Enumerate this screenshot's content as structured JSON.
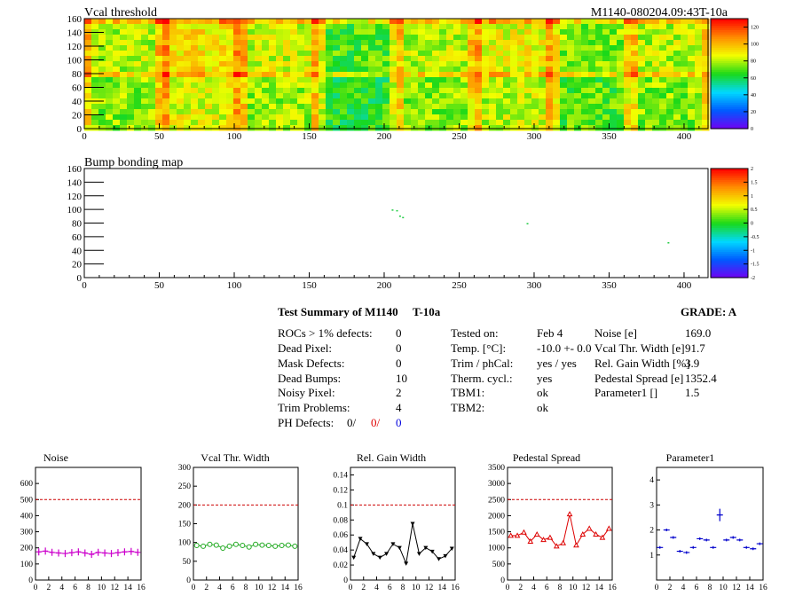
{
  "header": {
    "map1_title": "Vcal threshold",
    "run_id": "M1140-080204.09:43T-10a",
    "map2_title": "Bump bonding map"
  },
  "map_axes": {
    "x_ticks": [
      "0",
      "50",
      "100",
      "150",
      "200",
      "250",
      "300",
      "350",
      "400"
    ],
    "y_ticks": [
      "0",
      "20",
      "40",
      "60",
      "80",
      "100",
      "120",
      "140",
      "160"
    ],
    "map1_palette_ticks": [
      "0",
      "20",
      "40",
      "60",
      "80",
      "100",
      "120"
    ],
    "map2_palette_ticks": [
      "-2",
      "-1.5",
      "-1",
      "-0.5",
      "0",
      "0.5",
      "1",
      "1.5",
      "2"
    ]
  },
  "summary": {
    "title": "Test Summary of M1140",
    "temp_label": "T-10a",
    "grade": "GRADE:  A",
    "col1": [
      {
        "label": "ROCs > 1% defects:",
        "value": "0"
      },
      {
        "label": "Dead Pixel:",
        "value": "0"
      },
      {
        "label": "Mask Defects:",
        "value": "0"
      },
      {
        "label": "Dead Bumps:",
        "value": "10"
      },
      {
        "label": "Noisy Pixel:",
        "value": "2"
      },
      {
        "label": "Trim Problems:",
        "value": "4"
      }
    ],
    "ph_label": "PH Defects:",
    "ph_values": [
      "0/",
      "0/",
      "0"
    ],
    "col2": [
      {
        "label": "Tested on:",
        "value": "Feb 4"
      },
      {
        "label": "Temp. [°C]:",
        "value": "-10.0 +- 0.0"
      },
      {
        "label": "Trim / phCal:",
        "value": "yes / yes"
      },
      {
        "label": "Therm. cycl.:",
        "value": "yes"
      },
      {
        "label": "TBM1:",
        "value": "ok"
      },
      {
        "label": "TBM2:",
        "value": "ok"
      }
    ],
    "col3": [
      {
        "label": "Noise [e]",
        "value": "169.0"
      },
      {
        "label": "Vcal Thr. Width [e]",
        "value": "91.7"
      },
      {
        "label": "Rel. Gain Width [%]",
        "value": "3.9"
      },
      {
        "label": "Pedestal Spread [e]",
        "value": "1352.4"
      },
      {
        "label": "Parameter1 []",
        "value": "1.5"
      }
    ]
  },
  "chart_data": [
    {
      "type": "heatmap",
      "title": "Vcal threshold",
      "xlim": [
        0,
        416
      ],
      "ylim": [
        0,
        160
      ],
      "zlim": [
        0,
        130
      ],
      "palette": "rainbow"
    },
    {
      "type": "heatmap",
      "title": "Bump bonding map",
      "xlim": [
        0,
        416
      ],
      "ylim": [
        0,
        160
      ],
      "zlim": [
        -2,
        2
      ],
      "palette": "rainbow"
    },
    {
      "type": "line",
      "title": "Noise",
      "x": [
        0,
        1,
        2,
        3,
        4,
        5,
        6,
        7,
        8,
        9,
        10,
        11,
        12,
        13,
        14,
        15
      ],
      "values": [
        175,
        180,
        172,
        168,
        165,
        170,
        175,
        168,
        160,
        172,
        168,
        165,
        170,
        175,
        178,
        172
      ],
      "xlim": [
        0,
        16
      ],
      "ylim": [
        0,
        700
      ],
      "yticks": [
        0,
        100,
        200,
        300,
        400,
        500,
        600
      ],
      "reference": 500,
      "color": "#cc00cc",
      "marker": "cross"
    },
    {
      "type": "line",
      "title": "Vcal Thr. Width",
      "x": [
        0,
        1,
        2,
        3,
        4,
        5,
        6,
        7,
        8,
        9,
        10,
        11,
        12,
        13,
        14,
        15
      ],
      "values": [
        92,
        90,
        95,
        93,
        85,
        90,
        95,
        92,
        88,
        95,
        93,
        92,
        90,
        92,
        93,
        90
      ],
      "xlim": [
        0,
        16
      ],
      "ylim": [
        0,
        300
      ],
      "yticks": [
        0,
        50,
        100,
        150,
        200,
        250,
        300
      ],
      "reference": 200,
      "color": "#22aa22",
      "marker": "circle"
    },
    {
      "type": "line",
      "title": "Rel. Gain Width",
      "x": [
        0,
        1,
        2,
        3,
        4,
        5,
        6,
        7,
        8,
        9,
        10,
        11,
        12,
        13,
        14,
        15
      ],
      "values": [
        0.03,
        0.055,
        0.048,
        0.035,
        0.03,
        0.035,
        0.048,
        0.043,
        0.022,
        0.075,
        0.035,
        0.043,
        0.038,
        0.028,
        0.032,
        0.042
      ],
      "xlim": [
        0,
        16
      ],
      "ylim": [
        0,
        0.15
      ],
      "yticks": [
        0,
        0.02,
        0.04,
        0.06,
        0.08,
        0.1,
        0.12,
        0.14
      ],
      "reference": 0.1,
      "color": "#000000",
      "marker": "triangle-down"
    },
    {
      "type": "line",
      "title": "Pedestal Spread",
      "x": [
        0,
        1,
        2,
        3,
        4,
        5,
        6,
        7,
        8,
        9,
        10,
        11,
        12,
        13,
        14,
        15
      ],
      "values": [
        1380,
        1380,
        1480,
        1200,
        1420,
        1250,
        1320,
        1050,
        1150,
        2050,
        1080,
        1420,
        1600,
        1420,
        1320,
        1600
      ],
      "xlim": [
        0,
        16
      ],
      "ylim": [
        0,
        3500
      ],
      "yticks": [
        0,
        500,
        1000,
        1500,
        2000,
        2500,
        3000,
        3500
      ],
      "reference": 2500,
      "color": "#dd0000",
      "marker": "triangle-up"
    },
    {
      "type": "scatter",
      "title": "Parameter1",
      "x": [
        0,
        1,
        2,
        3,
        4,
        5,
        6,
        7,
        8,
        9,
        10,
        11,
        12,
        13,
        14,
        15
      ],
      "values": [
        1.3,
        2.0,
        1.7,
        1.15,
        1.1,
        1.3,
        1.65,
        1.6,
        1.3,
        2.6,
        1.6,
        1.7,
        1.6,
        1.3,
        1.25,
        1.45
      ],
      "xlim": [
        0,
        16
      ],
      "ylim": [
        0,
        4.5
      ],
      "yticks": [
        1,
        2,
        3,
        4
      ],
      "reference": null,
      "color": "#0000cc",
      "marker": "errorbar"
    }
  ],
  "x_ticks_small": [
    "0",
    "2",
    "4",
    "6",
    "8",
    "10",
    "12",
    "14",
    "16"
  ]
}
